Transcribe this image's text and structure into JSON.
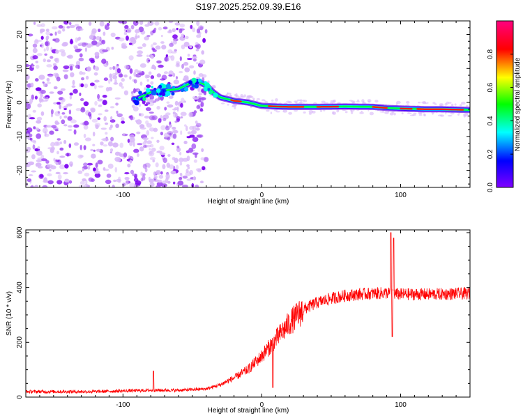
{
  "title": "S197.2025.252.09.39.E16",
  "chart_data": [
    {
      "type": "heatmap",
      "name": "spectrogram",
      "xlabel": "Height of straight line (km)",
      "ylabel": "Frequency (Hz)",
      "xlim": [
        -170,
        150
      ],
      "ylim": [
        -25,
        24
      ],
      "xticks": [
        -100,
        0,
        100
      ],
      "yticks": [
        -20,
        -10,
        0,
        10,
        20
      ],
      "colorbar": {
        "label": "Normalized spectral amplitude",
        "range": [
          0.0,
          1.0
        ],
        "ticks": [
          0.0,
          0.2,
          0.4,
          0.6,
          0.8
        ],
        "colormap": [
          "#8000ff",
          "#0000ff",
          "#00ffff",
          "#00ff00",
          "#ffff00",
          "#ff0000",
          "#ff0080"
        ]
      },
      "noise_region": {
        "x_from": -170,
        "x_to": -40
      },
      "ridge": {
        "x": [
          -90,
          -85,
          -80,
          -60,
          -55,
          -50,
          -45,
          -40,
          -35,
          -30,
          -20,
          -10,
          0,
          10,
          20,
          40,
          60,
          80,
          90,
          100,
          110,
          120,
          130,
          140,
          150
        ],
        "freq": [
          1,
          2,
          3,
          4,
          5,
          6,
          6,
          5,
          3,
          1.5,
          0.5,
          0,
          -1,
          -1.2,
          -1.3,
          -1.3,
          -1.2,
          -1.3,
          -1.6,
          -1.8,
          -1.9,
          -2,
          -2,
          -2.1,
          -2.2
        ]
      }
    },
    {
      "type": "line",
      "name": "snr",
      "xlabel": "Height of straight line (km)",
      "ylabel": "SNR (10 * v/v)",
      "xlim": [
        -170,
        150
      ],
      "ylim": [
        0,
        610
      ],
      "xticks": [
        -100,
        0,
        100
      ],
      "yticks": [
        0,
        200,
        400,
        600
      ],
      "color": "#ff0000",
      "trend": {
        "x": [
          -170,
          -120,
          -80,
          -60,
          -40,
          -30,
          -20,
          -10,
          0,
          10,
          20,
          30,
          40,
          50,
          60,
          70,
          80,
          90,
          100,
          120,
          150
        ],
        "y": [
          20,
          20,
          25,
          25,
          30,
          45,
          70,
          100,
          150,
          210,
          270,
          320,
          345,
          360,
          370,
          375,
          378,
          380,
          375,
          375,
          378
        ]
      },
      "spikes": [
        {
          "x": -78,
          "y": 95
        },
        {
          "x": 8,
          "y": 35
        },
        {
          "x": 93,
          "y": 600
        },
        {
          "x": 95,
          "y": 580
        },
        {
          "x": 94,
          "y": 220
        }
      ]
    }
  ]
}
